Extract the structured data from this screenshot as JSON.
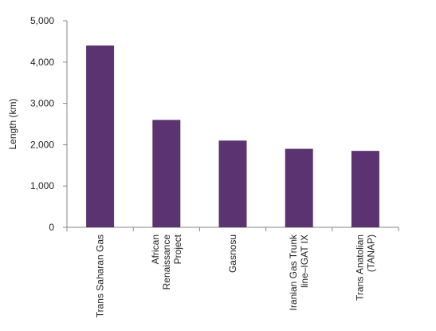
{
  "chart_data": {
    "type": "bar",
    "title": "",
    "xlabel": "",
    "ylabel": "Length (km)",
    "ylim": [
      0,
      5000
    ],
    "yticks": [
      "0",
      "1,000",
      "2,000",
      "3,000",
      "4,000",
      "5,000"
    ],
    "grid": false,
    "categories": [
      [
        "Trans Saharan Gas"
      ],
      [
        "African",
        "Renaissance",
        "Project"
      ],
      [
        "Gasnosu"
      ],
      [
        "Iranian Gas Trunk",
        "line–IGAT IX"
      ],
      [
        "Trans Anatolian",
        "(TANAP)"
      ]
    ],
    "values": [
      4400,
      2600,
      2100,
      1900,
      1850
    ],
    "bar_color": "#5b3371"
  }
}
